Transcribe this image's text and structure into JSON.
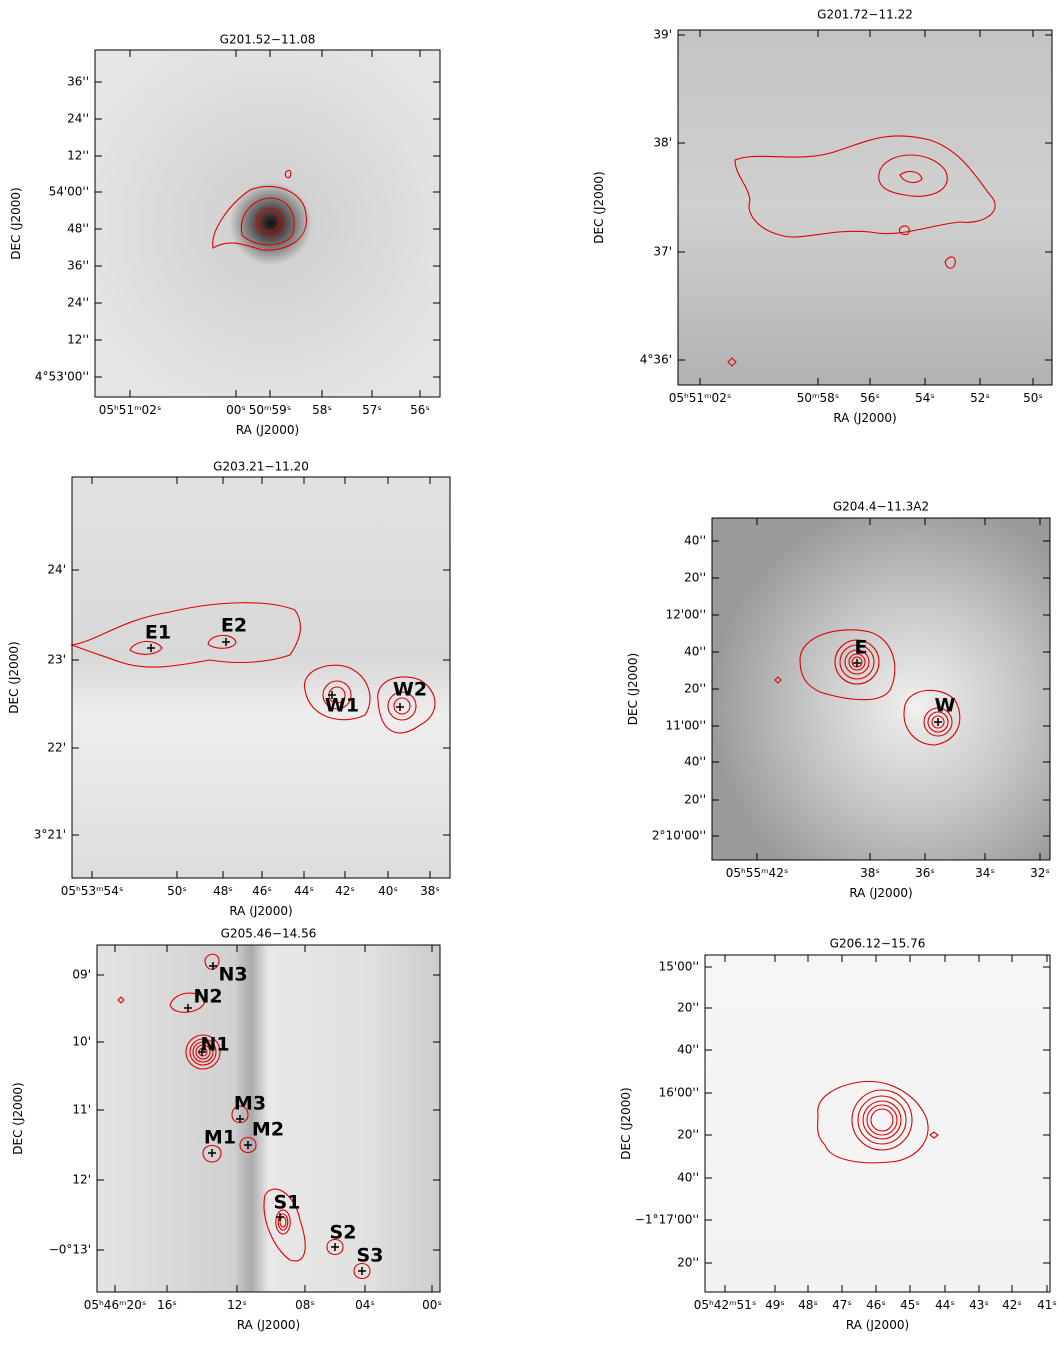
{
  "panels": [
    {
      "title": "G201.52−11.08",
      "x_label": "RA (J2000)",
      "y_label": "DEC (J2000)",
      "x_ticks": [
        "05ʰ51ᵐ02ˢ",
        "00ˢ",
        "50ᵐ59ˢ",
        "58ˢ",
        "57ˢ",
        "56ˢ"
      ],
      "y_ticks": [
        "36''",
        "24''",
        "12''",
        "54'00''",
        "48''",
        "36''",
        "24''",
        "12''",
        "4°53'00''"
      ],
      "sources": []
    },
    {
      "title": "G201.72−11.22",
      "x_label": "RA (J2000)",
      "y_label": "DEC (J2000)",
      "x_ticks": [
        "05ʰ51ᵐ02ˢ",
        "50ᵐ58ˢ",
        "56ˢ",
        "54ˢ",
        "52ˢ",
        "50ˢ"
      ],
      "y_ticks": [
        "39'",
        "38'",
        "37'",
        "4°36'"
      ],
      "sources": []
    },
    {
      "title": "G203.21−11.20",
      "x_label": "RA (J2000)",
      "y_label": "DEC (J2000)",
      "x_ticks": [
        "05ʰ53ᵐ54ˢ",
        "50ˢ",
        "48ˢ",
        "46ˢ",
        "44ˢ",
        "42ˢ",
        "40ˢ",
        "38ˢ"
      ],
      "y_ticks": [
        "24'",
        "23'",
        "22'",
        "3°21'"
      ],
      "sources": [
        "E1",
        "E2",
        "W1",
        "W2"
      ]
    },
    {
      "title": "G204.4−11.3A2",
      "x_label": "RA (J2000)",
      "y_label": "DEC (J2000)",
      "x_ticks": [
        "05ʰ55ᵐ42ˢ",
        "38ˢ",
        "36ˢ",
        "34ˢ",
        "32ˢ"
      ],
      "y_ticks": [
        "40''",
        "20''",
        "12'00''",
        "40''",
        "20''",
        "11'00''",
        "40''",
        "20''",
        "2°10'00''"
      ],
      "sources": [
        "E",
        "W"
      ]
    },
    {
      "title": "G205.46−14.56",
      "x_label": "RA (J2000)",
      "y_label": "DEC (J2000)",
      "x_ticks": [
        "05ʰ46ᵐ20ˢ",
        "16ˢ",
        "12ˢ",
        "08ˢ",
        "04ˢ",
        "00ˢ"
      ],
      "y_ticks": [
        "09'",
        "10'",
        "11'",
        "12'",
        "−0°13'"
      ],
      "sources": [
        "N3",
        "N2",
        "N1",
        "M3",
        "M2",
        "M1",
        "S1",
        "S2",
        "S3"
      ]
    },
    {
      "title": "G206.12−15.76",
      "x_label": "RA (J2000)",
      "y_label": "DEC (J2000)",
      "x_ticks": [
        "05ʰ42ᵐ51ˢ",
        "49ˢ",
        "48ˢ",
        "47ˢ",
        "46ˢ",
        "45ˢ",
        "44ˢ",
        "43ˢ",
        "42ˢ",
        "41ˢ"
      ],
      "y_ticks": [
        "15'00''",
        "20''",
        "40''",
        "16'00''",
        "20''",
        "40''",
        "−1°17'00''",
        "20''"
      ],
      "sources": []
    }
  ]
}
